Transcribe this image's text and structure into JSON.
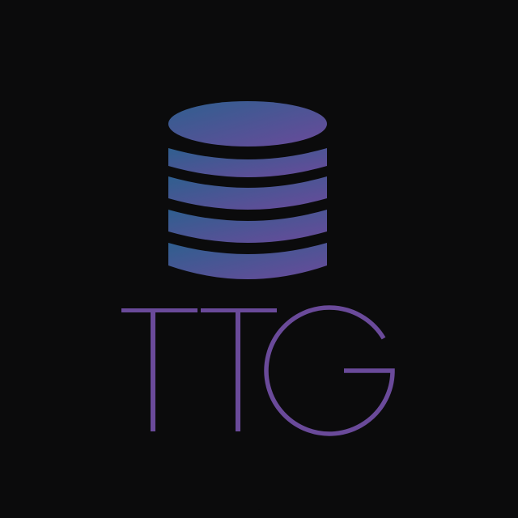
{
  "logo": {
    "icon": "database-icon",
    "wordmark": "TTG",
    "colors": {
      "background": "#0b0b0c",
      "gradient_start": "#2f5f8f",
      "gradient_end": "#6a4a9a",
      "separator": "#0b0b0c"
    }
  }
}
